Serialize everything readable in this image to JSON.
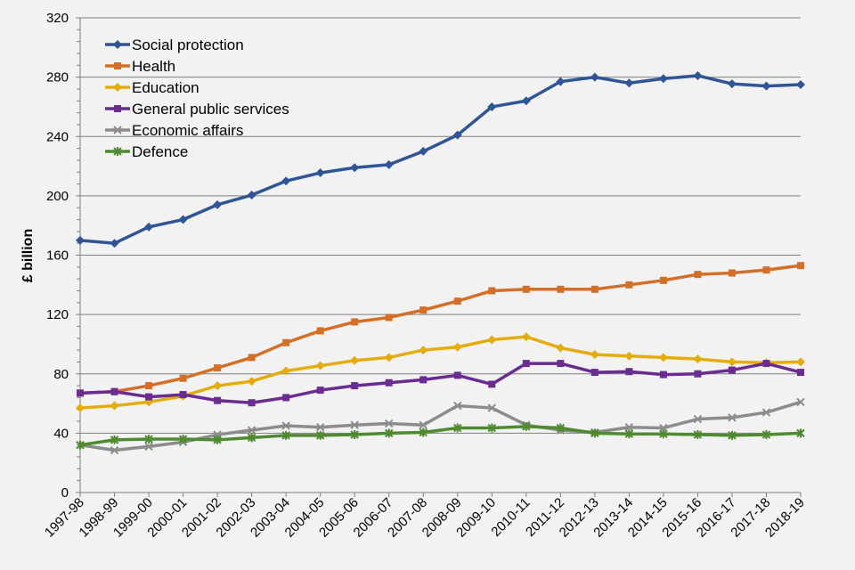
{
  "chart_data": {
    "type": "line",
    "title": "",
    "xlabel": "",
    "ylabel": "£ billion",
    "ylim": [
      0,
      320
    ],
    "yticks": [
      0,
      40,
      80,
      120,
      160,
      200,
      240,
      280,
      320
    ],
    "grid": "horizontal",
    "legend_position": "top-left",
    "categories": [
      "1997-98",
      "1998-99",
      "1999-00",
      "2000-01",
      "2001-02",
      "2002-03",
      "2003-04",
      "2004-05",
      "2005-06",
      "2006-07",
      "2007-08",
      "2008-09",
      "2009-10",
      "2010-11",
      "2011-12",
      "2012-13",
      "2013-14",
      "2014-15",
      "2015-16",
      "2016-17",
      "2017-18",
      "2018-19"
    ],
    "series": [
      {
        "name": "Social protection",
        "color": "#2f5597",
        "marker": "diamond",
        "values": [
          170,
          168,
          179,
          184,
          194,
          200.5,
          210,
          215.5,
          219,
          221,
          230,
          241,
          260,
          264,
          277,
          280,
          276,
          279,
          281,
          275.5,
          274,
          275
        ]
      },
      {
        "name": "Health",
        "color": "#d46f27",
        "marker": "square",
        "values": [
          67,
          68,
          72,
          77,
          84,
          91,
          101,
          109,
          115,
          118,
          123,
          129,
          136,
          137,
          137,
          137,
          140,
          143,
          147,
          148,
          150,
          153
        ]
      },
      {
        "name": "Education",
        "color": "#e4ac0c",
        "marker": "diamond",
        "values": [
          57,
          58.5,
          61,
          65,
          72,
          75,
          82,
          85.5,
          89,
          91,
          96,
          98,
          103,
          105,
          97.5,
          93,
          92,
          91,
          90,
          88,
          87.5,
          88
        ]
      },
      {
        "name": "General public services",
        "color": "#6a2c91",
        "marker": "square",
        "values": [
          67,
          68,
          64.5,
          66,
          62,
          60.5,
          64,
          69,
          72,
          74,
          76,
          79,
          73,
          87,
          87,
          81,
          81.5,
          79.5,
          80,
          82.5,
          87,
          81
        ]
      },
      {
        "name": "Economic affairs",
        "color": "#8c8c8c",
        "marker": "x",
        "values": [
          32,
          28.5,
          31,
          34,
          39,
          42,
          45,
          44,
          45.5,
          46.5,
          45.5,
          58.5,
          57,
          45.5,
          42,
          40.5,
          44,
          43.5,
          49.5,
          50.5,
          54,
          61
        ]
      },
      {
        "name": "Defence",
        "color": "#4e8a2f",
        "marker": "star",
        "values": [
          32,
          35.5,
          36,
          36,
          35.5,
          37,
          38.5,
          38.5,
          39,
          40,
          40.5,
          43.5,
          43.5,
          44.5,
          43.5,
          40,
          39.5,
          39.5,
          39,
          38.5,
          39,
          40
        ]
      }
    ]
  }
}
